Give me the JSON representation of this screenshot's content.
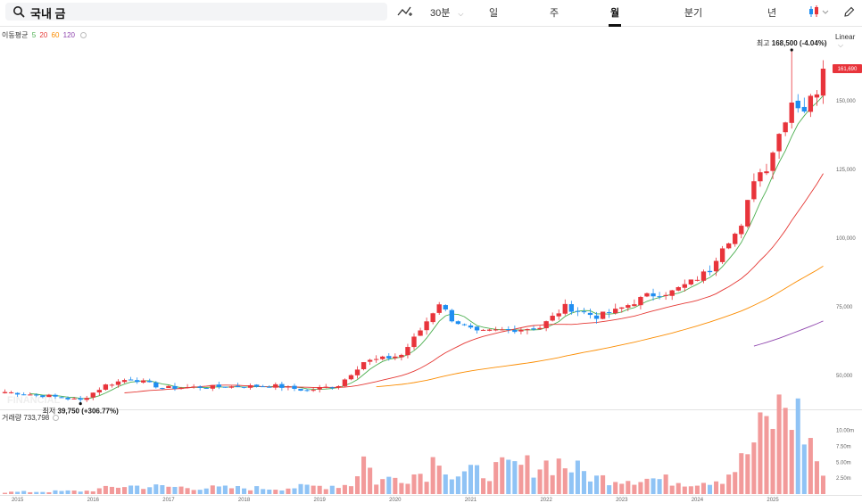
{
  "toolbar": {
    "search_value": "국내 금",
    "interval": "30분",
    "tabs": [
      {
        "label": "일",
        "active": false
      },
      {
        "label": "주",
        "active": false
      },
      {
        "label": "월",
        "active": true
      },
      {
        "label": "분기",
        "active": false
      },
      {
        "label": "년",
        "active": false
      }
    ]
  },
  "ma_legend": {
    "title": "이동평균",
    "periods": [
      {
        "label": "5",
        "color": "#4caf50"
      },
      {
        "label": "20",
        "color": "#e53935"
      },
      {
        "label": "60",
        "color": "#fb8c00"
      },
      {
        "label": "120",
        "color": "#8e44ad"
      }
    ]
  },
  "scale_mode": "Linear",
  "volume_legend": {
    "title": "거래량",
    "value": "733,798"
  },
  "colors": {
    "up": "#e8343b",
    "down": "#1f8ef1",
    "up_vol": "#f29a9a",
    "down_vol": "#8fc3f5",
    "ma5": "#4caf50",
    "ma20": "#e53935",
    "ma60": "#fb8c00",
    "ma120": "#8e44ad"
  },
  "watermark": "FINANCIAL",
  "chart_data": {
    "type": "candlestick",
    "interval": "monthly",
    "x_labels": [
      "2015",
      "2016",
      "2017",
      "2018",
      "2019",
      "2020",
      "2021",
      "2022",
      "2023",
      "2024",
      "2025"
    ],
    "x_range": [
      "2014-11",
      "2025-09"
    ],
    "price_axis": {
      "ticks": [
        "50,000",
        "75,000",
        "100,000",
        "125,000",
        "150,000"
      ],
      "tick_values": [
        50000,
        75000,
        100000,
        125000,
        150000
      ],
      "ylim": [
        38000,
        175000
      ]
    },
    "volume_axis": {
      "ticks": [
        "2.50m",
        "5.00m",
        "7.50m",
        "10.00m"
      ],
      "tick_values": [
        2500000,
        5000000,
        7500000,
        10000000
      ],
      "ylim": [
        0,
        11500000
      ]
    },
    "current_price": {
      "label": "161,690",
      "value": 161690
    },
    "high_annotation": {
      "label": "최고",
      "value_text": "168,500 (-4.04%)",
      "value": 168500,
      "date": "2025-04"
    },
    "low_annotation": {
      "label": "최저",
      "value_text": "39,750 (+306.77%)",
      "value": 39750,
      "date": "2015-11"
    },
    "anchors": [
      [
        "2014-11",
        44000
      ],
      [
        "2015-06",
        42500
      ],
      [
        "2015-11",
        41000
      ],
      [
        "2016-03",
        46500
      ],
      [
        "2016-07",
        49000
      ],
      [
        "2016-12",
        45500
      ],
      [
        "2017-06",
        45800
      ],
      [
        "2017-12",
        46000
      ],
      [
        "2018-06",
        46200
      ],
      [
        "2018-11",
        44500
      ],
      [
        "2019-04",
        46500
      ],
      [
        "2019-08",
        55000
      ],
      [
        "2019-12",
        56500
      ],
      [
        "2020-02",
        57500
      ],
      [
        "2020-05",
        66500
      ],
      [
        "2020-08",
        76500
      ],
      [
        "2020-10",
        70500
      ],
      [
        "2021-02",
        65500
      ],
      [
        "2021-06",
        66500
      ],
      [
        "2021-12",
        67500
      ],
      [
        "2022-04",
        75000
      ],
      [
        "2022-09",
        71500
      ],
      [
        "2022-12",
        73500
      ],
      [
        "2023-05",
        79000
      ],
      [
        "2023-09",
        80500
      ],
      [
        "2023-12",
        84000
      ],
      [
        "2024-03",
        88500
      ],
      [
        "2024-05",
        97500
      ],
      [
        "2024-08",
        103500
      ],
      [
        "2024-10",
        122000
      ],
      [
        "2024-12",
        126000
      ],
      [
        "2025-02",
        138000
      ],
      [
        "2025-04",
        150000
      ],
      [
        "2025-06",
        147000
      ],
      [
        "2025-08",
        154000
      ],
      [
        "2025-09",
        161690
      ]
    ],
    "volume_anchors": [
      [
        "2014-11",
        300000
      ],
      [
        "2015-12",
        500000
      ],
      [
        "2016-06",
        1300000
      ],
      [
        "2017-06",
        1000000
      ],
      [
        "2018-06",
        900000
      ],
      [
        "2019-06",
        1500000
      ],
      [
        "2019-08",
        5800000
      ],
      [
        "2019-10",
        2000000
      ],
      [
        "2020-06",
        3500000
      ],
      [
        "2020-08",
        7000000
      ],
      [
        "2020-10",
        2800000
      ],
      [
        "2021-06",
        4000000
      ],
      [
        "2022-03",
        5000000
      ],
      [
        "2022-09",
        2500000
      ],
      [
        "2023-06",
        2400000
      ],
      [
        "2023-12",
        1800000
      ],
      [
        "2024-05",
        2500000
      ],
      [
        "2024-08",
        5000000
      ],
      [
        "2024-11",
        9500000
      ],
      [
        "2025-03",
        14000000
      ],
      [
        "2025-05",
        12000000
      ],
      [
        "2025-07",
        8000000
      ],
      [
        "2025-09",
        3000000
      ]
    ]
  }
}
